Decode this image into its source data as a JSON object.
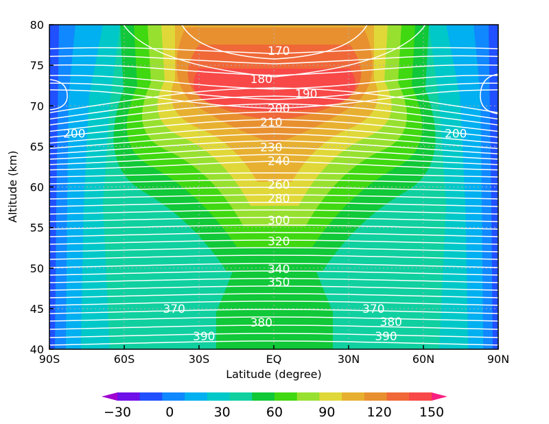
{
  "chart_data": {
    "type": "heatmap",
    "xlabel": "Latitude (degree)",
    "ylabel": "Altitude (km)",
    "xlim": [
      -90,
      90
    ],
    "ylim": [
      40,
      80
    ],
    "x_ticks": [
      {
        "value": -90,
        "label": "90S"
      },
      {
        "value": -60,
        "label": "60S"
      },
      {
        "value": -30,
        "label": "30S"
      },
      {
        "value": 0,
        "label": "EQ"
      },
      {
        "value": 30,
        "label": "30N"
      },
      {
        "value": 60,
        "label": "60N"
      },
      {
        "value": 90,
        "label": "90N"
      }
    ],
    "y_ticks": [
      40,
      45,
      50,
      55,
      60,
      65,
      70,
      75,
      80
    ],
    "grid": true,
    "colorbar": {
      "levels": [
        -30,
        -15,
        0,
        15,
        30,
        45,
        60,
        75,
        90,
        105,
        120,
        135,
        150
      ],
      "colors": [
        "#a000d0",
        "#7010e8",
        "#2050ff",
        "#1088ff",
        "#00b0f0",
        "#00c8c8",
        "#10d0a0",
        "#10c838",
        "#40d810",
        "#98e030",
        "#e0d838",
        "#e8b030",
        "#e89030",
        "#f06838",
        "#f84848",
        "#f82080"
      ],
      "tick_labels": [
        "−30",
        "0",
        "30",
        "60",
        "90",
        "120",
        "150"
      ],
      "tick_values": [
        -30,
        0,
        30,
        60,
        90,
        120,
        150
      ],
      "extend": "both"
    },
    "contour_lines": {
      "color": "#ffffff",
      "labels": [
        {
          "text": "170",
          "lat": 2,
          "alt": 76.8
        },
        {
          "text": "180",
          "lat": -5,
          "alt": 73.3
        },
        {
          "text": "190",
          "lat": 13,
          "alt": 71.5
        },
        {
          "text": "200",
          "lat": 2,
          "alt": 69.7
        },
        {
          "text": "210",
          "lat": -1,
          "alt": 68.0
        },
        {
          "text": "200",
          "lat": -80,
          "alt": 66.6
        },
        {
          "text": "200",
          "lat": 73,
          "alt": 66.6
        },
        {
          "text": "230",
          "lat": -1,
          "alt": 64.9
        },
        {
          "text": "240",
          "lat": 2,
          "alt": 63.2
        },
        {
          "text": "260",
          "lat": 2,
          "alt": 60.3
        },
        {
          "text": "280",
          "lat": 2,
          "alt": 58.6
        },
        {
          "text": "300",
          "lat": 2,
          "alt": 55.9
        },
        {
          "text": "320",
          "lat": 2,
          "alt": 53.3
        },
        {
          "text": "340",
          "lat": 2,
          "alt": 49.9
        },
        {
          "text": "350",
          "lat": 2,
          "alt": 48.3
        },
        {
          "text": "370",
          "lat": -40,
          "alt": 45.0
        },
        {
          "text": "370",
          "lat": 40,
          "alt": 45.0
        },
        {
          "text": "380",
          "lat": -5,
          "alt": 43.3
        },
        {
          "text": "380",
          "lat": 47,
          "alt": 43.4
        },
        {
          "text": "390",
          "lat": -28,
          "alt": 41.6
        },
        {
          "text": "390",
          "lat": 45,
          "alt": 41.6
        }
      ]
    }
  }
}
